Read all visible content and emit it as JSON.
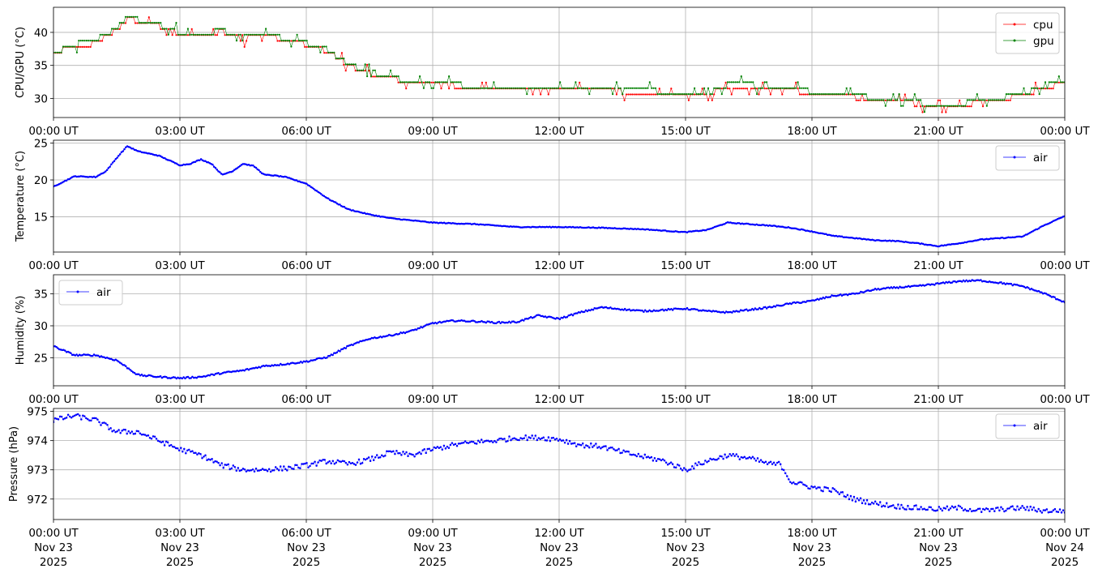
{
  "chart_data": [
    {
      "type": "line",
      "ylabel": "CPU/GPU (°C)",
      "ylim": [
        27.1,
        43.8
      ],
      "yticks": [
        30,
        35,
        40
      ],
      "xlim": [
        "2025-11-23T00:00Z",
        "2025-11-24T00:00Z"
      ],
      "xtick_labels": [
        "00:00 UT",
        "03:00 UT",
        "06:00 UT",
        "09:00 UT",
        "12:00 UT",
        "15:00 UT",
        "18:00 UT",
        "21:00 UT",
        "00:00 UT"
      ],
      "grid": true,
      "legend": "top-right",
      "series": [
        {
          "name": "cpu",
          "color": "#ff0000",
          "x_hours": [
            0,
            0.5,
            1.0,
            1.5,
            1.75,
            2.0,
            2.5,
            3.0,
            3.5,
            4.0,
            4.5,
            5.0,
            5.5,
            6.0,
            6.5,
            7.0,
            7.5,
            8.0,
            8.5,
            9.0,
            10.0,
            11.0,
            12.0,
            13.0,
            14.0,
            15.0,
            15.5,
            16.0,
            16.5,
            17.0,
            17.5,
            18.0,
            18.5,
            19.0,
            19.5,
            20.0,
            20.5,
            21.0,
            21.5,
            22.0,
            22.5,
            23.0,
            23.5,
            24.0
          ],
          "values": [
            36.8,
            38.0,
            38.3,
            40.5,
            42.0,
            41.8,
            41.0,
            39.8,
            39.5,
            40.2,
            39.0,
            39.8,
            38.8,
            38.2,
            37.2,
            35.0,
            33.8,
            33.0,
            32.5,
            32.3,
            31.6,
            31.4,
            31.2,
            31.1,
            31.0,
            30.8,
            30.6,
            31.8,
            31.9,
            31.6,
            31.2,
            30.8,
            30.4,
            30.2,
            29.8,
            29.6,
            29.2,
            28.5,
            28.8,
            29.6,
            29.8,
            30.5,
            31.5,
            32.5
          ]
        },
        {
          "name": "gpu",
          "color": "#008000",
          "x_hours": [
            0,
            0.5,
            1.0,
            1.5,
            1.75,
            2.0,
            2.5,
            3.0,
            3.5,
            4.0,
            4.5,
            5.0,
            5.5,
            6.0,
            6.5,
            7.0,
            7.5,
            8.0,
            8.5,
            9.0,
            10.0,
            11.0,
            12.0,
            13.0,
            14.0,
            15.0,
            15.5,
            16.0,
            16.5,
            17.0,
            17.5,
            18.0,
            18.5,
            19.0,
            19.5,
            20.0,
            20.5,
            21.0,
            21.5,
            22.0,
            22.5,
            23.0,
            23.5,
            24.0
          ],
          "values": [
            36.8,
            38.2,
            38.5,
            40.6,
            42.1,
            41.9,
            41.1,
            39.9,
            39.6,
            40.3,
            39.1,
            39.9,
            38.9,
            38.3,
            37.3,
            35.1,
            33.9,
            33.1,
            32.6,
            32.4,
            31.8,
            31.6,
            31.4,
            31.2,
            31.1,
            30.9,
            30.7,
            32.0,
            32.0,
            31.8,
            31.4,
            31.0,
            30.6,
            30.4,
            30.0,
            29.8,
            29.4,
            28.7,
            29.0,
            29.8,
            30.0,
            30.7,
            31.7,
            32.7
          ]
        }
      ]
    },
    {
      "type": "line",
      "ylabel": "Temperature (°C)",
      "ylim": [
        10.2,
        25.4
      ],
      "yticks": [
        15,
        20,
        25
      ],
      "xlim": [
        "2025-11-23T00:00Z",
        "2025-11-24T00:00Z"
      ],
      "xtick_labels": [
        "00:00 UT",
        "03:00 UT",
        "06:00 UT",
        "09:00 UT",
        "12:00 UT",
        "15:00 UT",
        "18:00 UT",
        "21:00 UT",
        "00:00 UT"
      ],
      "grid": true,
      "legend": "top-right",
      "series": [
        {
          "name": "air",
          "color": "#0000ff",
          "x_hours": [
            0,
            0.5,
            1.0,
            1.25,
            1.5,
            1.75,
            2.0,
            2.25,
            2.5,
            3.0,
            3.25,
            3.5,
            3.75,
            4.0,
            4.25,
            4.5,
            4.75,
            5.0,
            5.25,
            5.5,
            6.0,
            6.5,
            7.0,
            7.5,
            8.0,
            8.5,
            9.0,
            10.0,
            11.0,
            12.0,
            13.0,
            14.0,
            14.5,
            15.0,
            15.5,
            16.0,
            16.5,
            17.0,
            17.5,
            18.0,
            18.5,
            19.0,
            19.5,
            20.0,
            20.5,
            21.0,
            21.5,
            22.0,
            22.5,
            23.0,
            23.5,
            24.0
          ],
          "values": [
            19.1,
            20.5,
            20.4,
            21.2,
            23.0,
            24.6,
            23.9,
            23.6,
            23.3,
            22.0,
            22.2,
            22.8,
            22.2,
            20.7,
            21.2,
            22.2,
            21.9,
            20.7,
            20.6,
            20.4,
            19.5,
            17.5,
            16.0,
            15.3,
            14.8,
            14.5,
            14.2,
            14.0,
            13.6,
            13.6,
            13.5,
            13.3,
            13.1,
            12.9,
            13.2,
            14.2,
            14.0,
            13.8,
            13.5,
            13.0,
            12.4,
            12.1,
            11.8,
            11.7,
            11.4,
            11.0,
            11.4,
            11.9,
            12.1,
            12.3,
            13.8,
            15.1
          ]
        }
      ]
    },
    {
      "type": "line",
      "ylabel": "Humidity (%)",
      "ylim": [
        20.6,
        38.0
      ],
      "yticks": [
        25,
        30,
        35
      ],
      "xlim": [
        "2025-11-23T00:00Z",
        "2025-11-24T00:00Z"
      ],
      "xtick_labels": [
        "00:00 UT",
        "03:00 UT",
        "06:00 UT",
        "09:00 UT",
        "12:00 UT",
        "15:00 UT",
        "18:00 UT",
        "21:00 UT",
        "00:00 UT"
      ],
      "grid": true,
      "legend": "top-left",
      "series": [
        {
          "name": "air",
          "color": "#0000ff",
          "x_hours": [
            0,
            0.5,
            1.0,
            1.5,
            2.0,
            2.5,
            3.0,
            3.5,
            4.0,
            4.5,
            5.0,
            5.5,
            6.0,
            6.5,
            7.0,
            7.5,
            8.0,
            8.5,
            9.0,
            9.5,
            10.0,
            10.5,
            11.0,
            11.5,
            12.0,
            12.5,
            13.0,
            13.5,
            14.0,
            14.5,
            15.0,
            15.5,
            16.0,
            16.5,
            17.0,
            17.5,
            18.0,
            18.5,
            19.0,
            19.5,
            20.0,
            20.5,
            21.0,
            21.5,
            22.0,
            22.5,
            23.0,
            23.5,
            24.0
          ],
          "values": [
            26.8,
            25.4,
            25.4,
            24.6,
            22.3,
            22.0,
            21.8,
            22.0,
            22.6,
            23.0,
            23.7,
            24.0,
            24.4,
            25.1,
            26.8,
            28.0,
            28.5,
            29.2,
            30.4,
            30.8,
            30.7,
            30.5,
            30.6,
            31.6,
            31.1,
            32.1,
            32.9,
            32.6,
            32.3,
            32.5,
            32.7,
            32.3,
            32.1,
            32.5,
            32.9,
            33.5,
            33.9,
            34.7,
            35.0,
            35.7,
            36.0,
            36.2,
            36.6,
            37.0,
            37.1,
            36.7,
            36.2,
            35.1,
            33.7
          ]
        }
      ]
    },
    {
      "type": "scatter",
      "ylabel": "Pressure (hPa)",
      "ylim": [
        971.3,
        975.1
      ],
      "yticks": [
        972,
        973,
        974,
        975
      ],
      "xlim": [
        "2025-11-23T00:00Z",
        "2025-11-24T00:00Z"
      ],
      "xtick_labels": [
        "00:00 UT\nNov 23\n2025",
        "03:00 UT\nNov 23\n2025",
        "06:00 UT\nNov 23\n2025",
        "09:00 UT\nNov 23\n2025",
        "12:00 UT\nNov 23\n2025",
        "15:00 UT\nNov 23\n2025",
        "18:00 UT\nNov 23\n2025",
        "21:00 UT\nNov 23\n2025",
        "00:00 UT\nNov 24\n2025"
      ],
      "grid": true,
      "legend": "top-right",
      "series": [
        {
          "name": "air",
          "color": "#0000ff",
          "x_hours": [
            0,
            0.5,
            1.0,
            1.5,
            2.0,
            2.5,
            3.0,
            3.5,
            4.0,
            4.5,
            5.0,
            5.5,
            6.0,
            6.5,
            7.0,
            7.5,
            8.0,
            8.5,
            9.0,
            9.5,
            10.0,
            10.5,
            11.0,
            11.5,
            12.0,
            12.5,
            13.0,
            13.5,
            14.0,
            14.5,
            15.0,
            15.5,
            16.0,
            16.5,
            17.0,
            17.25,
            17.5,
            18.0,
            18.5,
            19.0,
            19.5,
            20.0,
            20.5,
            21.0,
            21.5,
            22.0,
            22.5,
            23.0,
            23.5,
            24.0
          ],
          "values": [
            974.7,
            974.85,
            974.7,
            974.3,
            974.3,
            974.0,
            973.7,
            973.5,
            973.15,
            973.0,
            973.0,
            973.05,
            973.15,
            973.3,
            973.2,
            973.35,
            973.6,
            973.5,
            973.7,
            973.85,
            973.95,
            974.0,
            974.1,
            974.1,
            974.05,
            973.85,
            973.8,
            973.6,
            973.45,
            973.3,
            973.0,
            973.3,
            973.5,
            973.4,
            973.2,
            973.2,
            972.6,
            972.4,
            972.3,
            972.0,
            971.85,
            971.75,
            971.7,
            971.65,
            971.7,
            971.6,
            971.65,
            971.7,
            971.6,
            971.6
          ]
        }
      ]
    }
  ]
}
